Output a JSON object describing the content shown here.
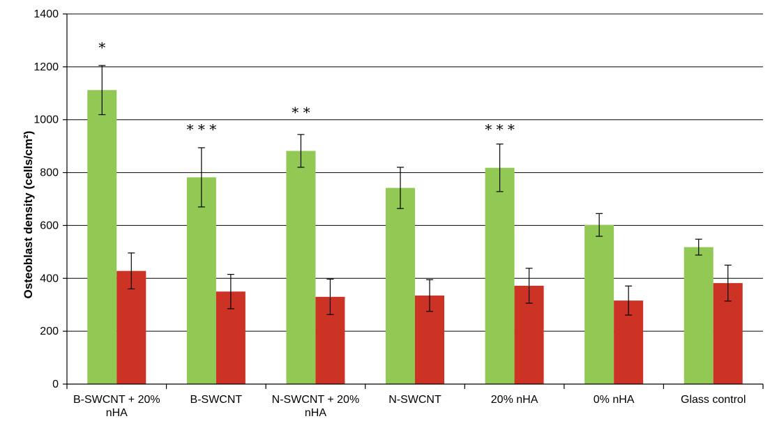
{
  "chart_data": {
    "type": "bar",
    "title": "",
    "xlabel": "",
    "ylabel": "Osteoblast density (cells/cm²)",
    "ylim": [
      0,
      1400
    ],
    "yticks": [
      0,
      200,
      400,
      600,
      800,
      1000,
      1200,
      1400
    ],
    "grid": true,
    "categories": [
      [
        "B-SWCNT + 20%",
        "nHA"
      ],
      [
        "B-SWCNT"
      ],
      [
        "N-SWCNT + 20%",
        "nHA"
      ],
      [
        "N-SWCNT"
      ],
      [
        "20% nHA"
      ],
      [
        "0% nHA"
      ],
      [
        "Glass control"
      ]
    ],
    "series": [
      {
        "color": "#92c955",
        "values": [
          1112,
          782,
          882,
          742,
          818,
          602,
          518
        ],
        "errors": [
          93,
          112,
          62,
          78,
          90,
          43,
          30
        ]
      },
      {
        "color": "#cc3325",
        "values": [
          428,
          350,
          330,
          335,
          372,
          316,
          382
        ],
        "errors": [
          68,
          65,
          67,
          60,
          66,
          55,
          68
        ]
      }
    ],
    "annotations": [
      {
        "category_index": 0,
        "text": "*",
        "y": 1255
      },
      {
        "category_index": 1,
        "text": "* * *",
        "y": 945
      },
      {
        "category_index": 2,
        "text": "* *",
        "y": 1010
      },
      {
        "category_index": 4,
        "text": "* * *",
        "y": 945
      }
    ]
  }
}
